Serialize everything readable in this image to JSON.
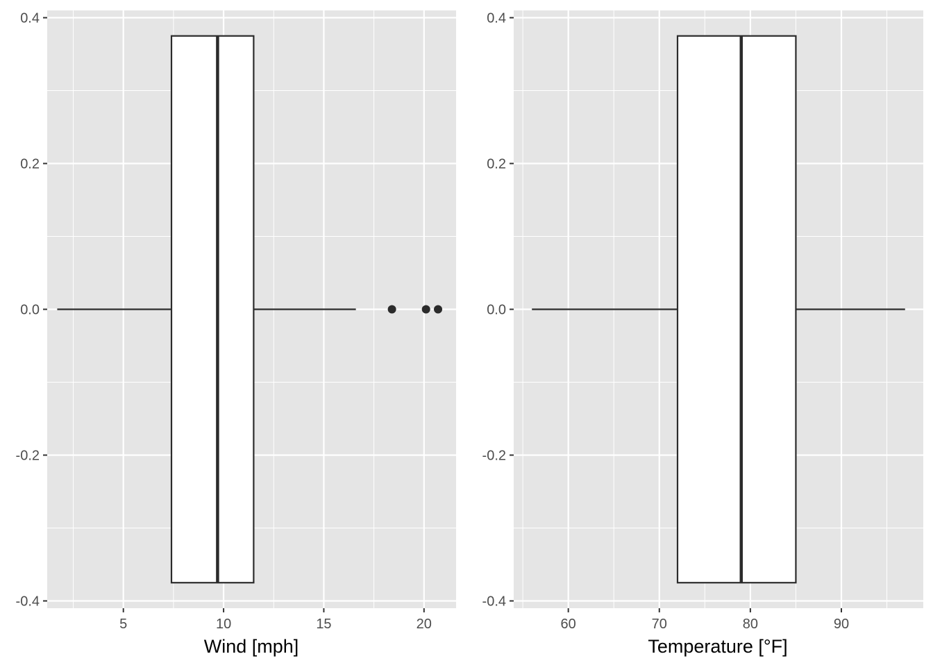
{
  "colors": {
    "panel_background": "#e5e5e5",
    "grid_line": "#ffffff",
    "box_fill": "#ffffff",
    "box_stroke": "#2b2b2b",
    "tick_mark": "#333333",
    "tick_label": "#4d4d4d"
  },
  "chart_data": [
    {
      "type": "boxplot",
      "xlabel": "Wind [mph]",
      "xlim": [
        1.2,
        21.6
      ],
      "xticks": [
        5,
        10,
        15,
        20
      ],
      "xtick_labels": [
        "5",
        "10",
        "15",
        "20"
      ],
      "ylim": [
        -0.41,
        0.41
      ],
      "yticks": [
        0.4,
        0.2,
        0.0,
        -0.2,
        -0.4
      ],
      "ytick_labels": [
        "0.4",
        "0.2",
        "0.0",
        "-0.2",
        "-0.4"
      ],
      "grid": true,
      "box": {
        "whisker_low": 1.7,
        "q1": 7.4,
        "median": 9.7,
        "q3": 11.5,
        "whisker_high": 16.6,
        "y_low": -0.375,
        "y_high": 0.375,
        "outliers": [
          18.4,
          20.1,
          20.7
        ]
      }
    },
    {
      "type": "boxplot",
      "xlabel": "Temperature [°F]",
      "xlim": [
        54.0,
        99.0
      ],
      "xticks": [
        60,
        70,
        80,
        90
      ],
      "xtick_labels": [
        "60",
        "70",
        "80",
        "90"
      ],
      "ylim": [
        -0.41,
        0.41
      ],
      "yticks": [
        0.4,
        0.2,
        0.0,
        -0.2,
        -0.4
      ],
      "ytick_labels": [
        "0.4",
        "0.2",
        "0.0",
        "-0.2",
        "-0.4"
      ],
      "grid": true,
      "box": {
        "whisker_low": 56,
        "q1": 72,
        "median": 79,
        "q3": 85,
        "whisker_high": 97,
        "y_low": -0.375,
        "y_high": 0.375,
        "outliers": []
      }
    }
  ]
}
